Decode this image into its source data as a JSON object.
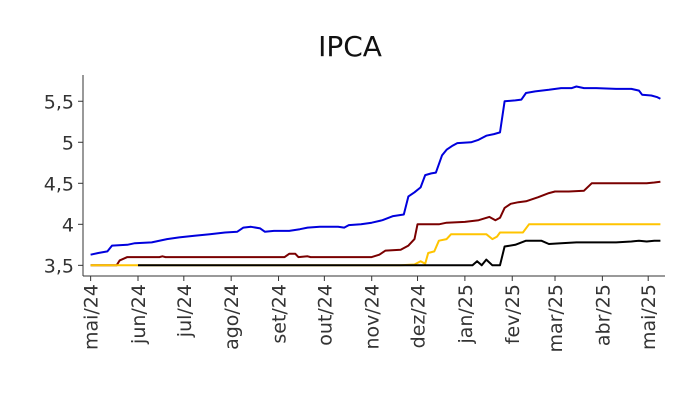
{
  "chart_data": {
    "type": "line",
    "title": "IPCA",
    "xlabel": "",
    "ylabel": "",
    "ylim": [
      3.37,
      5.82
    ],
    "grid": false,
    "legend": "none",
    "y_ticks": [
      {
        "value": 3.5,
        "label": "3,5"
      },
      {
        "value": 4.0,
        "label": "4"
      },
      {
        "value": 4.5,
        "label": "4,5"
      },
      {
        "value": 5.0,
        "label": "5"
      },
      {
        "value": 5.5,
        "label": "5,5"
      }
    ],
    "x_range": [
      "2024-04-26",
      "2025-05-12"
    ],
    "x_ticks": [
      {
        "date": "2024-05-01",
        "label": "mai/24"
      },
      {
        "date": "2024-06-01",
        "label": "jun/24"
      },
      {
        "date": "2024-07-01",
        "label": "jul/24"
      },
      {
        "date": "2024-08-01",
        "label": "ago/24"
      },
      {
        "date": "2024-09-01",
        "label": "set/24"
      },
      {
        "date": "2024-10-01",
        "label": "out/24"
      },
      {
        "date": "2024-11-01",
        "label": "nov/24"
      },
      {
        "date": "2024-12-01",
        "label": "dez/24"
      },
      {
        "date": "2025-01-01",
        "label": "jan/25"
      },
      {
        "date": "2025-02-01",
        "label": "fev/25"
      },
      {
        "date": "2025-03-01",
        "label": "mar/25"
      },
      {
        "date": "2025-04-01",
        "label": "abr/25"
      },
      {
        "date": "2025-05-01",
        "label": "mai/25"
      }
    ],
    "series": [
      {
        "color": "#0000dd",
        "points": [
          [
            "2024-05-01",
            3.63
          ],
          [
            "2024-05-06",
            3.65
          ],
          [
            "2024-05-12",
            3.67
          ],
          [
            "2024-05-15",
            3.74
          ],
          [
            "2024-05-25",
            3.75
          ],
          [
            "2024-05-30",
            3.77
          ],
          [
            "2024-06-10",
            3.78
          ],
          [
            "2024-06-20",
            3.82
          ],
          [
            "2024-06-28",
            3.84
          ],
          [
            "2024-07-08",
            3.86
          ],
          [
            "2024-07-18",
            3.88
          ],
          [
            "2024-07-28",
            3.9
          ],
          [
            "2024-08-05",
            3.91
          ],
          [
            "2024-08-09",
            3.96
          ],
          [
            "2024-08-14",
            3.97
          ],
          [
            "2024-08-20",
            3.95
          ],
          [
            "2024-08-23",
            3.91
          ],
          [
            "2024-08-29",
            3.92
          ],
          [
            "2024-09-08",
            3.92
          ],
          [
            "2024-09-15",
            3.94
          ],
          [
            "2024-09-20",
            3.96
          ],
          [
            "2024-09-28",
            3.97
          ],
          [
            "2024-10-10",
            3.97
          ],
          [
            "2024-10-14",
            3.96
          ],
          [
            "2024-10-17",
            3.99
          ],
          [
            "2024-10-25",
            4.0
          ],
          [
            "2024-11-01",
            4.02
          ],
          [
            "2024-11-08",
            4.05
          ],
          [
            "2024-11-15",
            4.1
          ],
          [
            "2024-11-22",
            4.12
          ],
          [
            "2024-11-25",
            4.34
          ],
          [
            "2024-11-29",
            4.39
          ],
          [
            "2024-12-03",
            4.45
          ],
          [
            "2024-12-06",
            4.6
          ],
          [
            "2024-12-10",
            4.62
          ],
          [
            "2024-12-13",
            4.63
          ],
          [
            "2024-12-17",
            4.84
          ],
          [
            "2024-12-20",
            4.91
          ],
          [
            "2024-12-24",
            4.96
          ],
          [
            "2024-12-27",
            4.99
          ],
          [
            "2025-01-05",
            5.0
          ],
          [
            "2025-01-10",
            5.03
          ],
          [
            "2025-01-15",
            5.08
          ],
          [
            "2025-01-20",
            5.1
          ],
          [
            "2025-01-24",
            5.12
          ],
          [
            "2025-01-27",
            5.5
          ],
          [
            "2025-02-03",
            5.51
          ],
          [
            "2025-02-07",
            5.52
          ],
          [
            "2025-02-10",
            5.6
          ],
          [
            "2025-02-16",
            5.62
          ],
          [
            "2025-02-25",
            5.64
          ],
          [
            "2025-03-05",
            5.66
          ],
          [
            "2025-03-12",
            5.66
          ],
          [
            "2025-03-15",
            5.68
          ],
          [
            "2025-03-20",
            5.66
          ],
          [
            "2025-03-28",
            5.66
          ],
          [
            "2025-04-10",
            5.65
          ],
          [
            "2025-04-20",
            5.65
          ],
          [
            "2025-04-25",
            5.63
          ],
          [
            "2025-04-27",
            5.58
          ],
          [
            "2025-05-03",
            5.57
          ],
          [
            "2025-05-07",
            5.55
          ],
          [
            "2025-05-09",
            5.53
          ]
        ]
      },
      {
        "color": "#7a0000",
        "points": [
          [
            "2024-05-01",
            3.5
          ],
          [
            "2024-05-18",
            3.5
          ],
          [
            "2024-05-20",
            3.56
          ],
          [
            "2024-05-25",
            3.6
          ],
          [
            "2024-06-15",
            3.6
          ],
          [
            "2024-06-17",
            3.61
          ],
          [
            "2024-06-19",
            3.6
          ],
          [
            "2024-08-20",
            3.6
          ],
          [
            "2024-09-05",
            3.6
          ],
          [
            "2024-09-08",
            3.64
          ],
          [
            "2024-09-12",
            3.64
          ],
          [
            "2024-09-14",
            3.6
          ],
          [
            "2024-09-20",
            3.61
          ],
          [
            "2024-09-22",
            3.6
          ],
          [
            "2024-11-01",
            3.6
          ],
          [
            "2024-11-06",
            3.63
          ],
          [
            "2024-11-10",
            3.68
          ],
          [
            "2024-11-20",
            3.69
          ],
          [
            "2024-11-25",
            3.74
          ],
          [
            "2024-11-29",
            3.82
          ],
          [
            "2024-12-01",
            4.0
          ],
          [
            "2024-12-15",
            4.0
          ],
          [
            "2024-12-20",
            4.02
          ],
          [
            "2025-01-01",
            4.03
          ],
          [
            "2025-01-10",
            4.05
          ],
          [
            "2025-01-17",
            4.09
          ],
          [
            "2025-01-21",
            4.05
          ],
          [
            "2025-01-24",
            4.08
          ],
          [
            "2025-01-27",
            4.2
          ],
          [
            "2025-01-31",
            4.25
          ],
          [
            "2025-02-05",
            4.27
          ],
          [
            "2025-02-10",
            4.28
          ],
          [
            "2025-02-18",
            4.33
          ],
          [
            "2025-02-25",
            4.38
          ],
          [
            "2025-03-01",
            4.4
          ],
          [
            "2025-03-10",
            4.4
          ],
          [
            "2025-03-20",
            4.41
          ],
          [
            "2025-03-25",
            4.5
          ],
          [
            "2025-04-10",
            4.5
          ],
          [
            "2025-04-30",
            4.5
          ],
          [
            "2025-05-05",
            4.51
          ],
          [
            "2025-05-09",
            4.52
          ]
        ]
      },
      {
        "color": "#ffc400",
        "points": [
          [
            "2024-05-01",
            3.5
          ],
          [
            "2024-06-01",
            3.5
          ],
          [
            "2024-11-20",
            3.5
          ],
          [
            "2024-11-29",
            3.51
          ],
          [
            "2024-12-03",
            3.55
          ],
          [
            "2024-12-06",
            3.52
          ],
          [
            "2024-12-08",
            3.65
          ],
          [
            "2024-12-12",
            3.67
          ],
          [
            "2024-12-15",
            3.8
          ],
          [
            "2024-12-20",
            3.82
          ],
          [
            "2024-12-23",
            3.88
          ],
          [
            "2025-01-15",
            3.88
          ],
          [
            "2025-01-19",
            3.82
          ],
          [
            "2025-01-22",
            3.85
          ],
          [
            "2025-01-24",
            3.9
          ],
          [
            "2025-02-08",
            3.9
          ],
          [
            "2025-02-12",
            4.0
          ],
          [
            "2025-03-15",
            4.0
          ],
          [
            "2025-04-15",
            4.0
          ],
          [
            "2025-05-09",
            4.0
          ]
        ]
      },
      {
        "color": "#000000",
        "points": [
          [
            "2024-06-01",
            3.5
          ],
          [
            "2024-12-25",
            3.5
          ],
          [
            "2025-01-06",
            3.5
          ],
          [
            "2025-01-09",
            3.55
          ],
          [
            "2025-01-12",
            3.5
          ],
          [
            "2025-01-15",
            3.57
          ],
          [
            "2025-01-19",
            3.5
          ],
          [
            "2025-01-24",
            3.5
          ],
          [
            "2025-01-27",
            3.73
          ],
          [
            "2025-02-03",
            3.75
          ],
          [
            "2025-02-10",
            3.8
          ],
          [
            "2025-02-20",
            3.8
          ],
          [
            "2025-02-25",
            3.76
          ],
          [
            "2025-03-05",
            3.77
          ],
          [
            "2025-03-15",
            3.78
          ],
          [
            "2025-03-25",
            3.78
          ],
          [
            "2025-04-10",
            3.78
          ],
          [
            "2025-04-20",
            3.79
          ],
          [
            "2025-04-25",
            3.8
          ],
          [
            "2025-04-30",
            3.79
          ],
          [
            "2025-05-05",
            3.8
          ],
          [
            "2025-05-09",
            3.8
          ]
        ]
      }
    ]
  }
}
